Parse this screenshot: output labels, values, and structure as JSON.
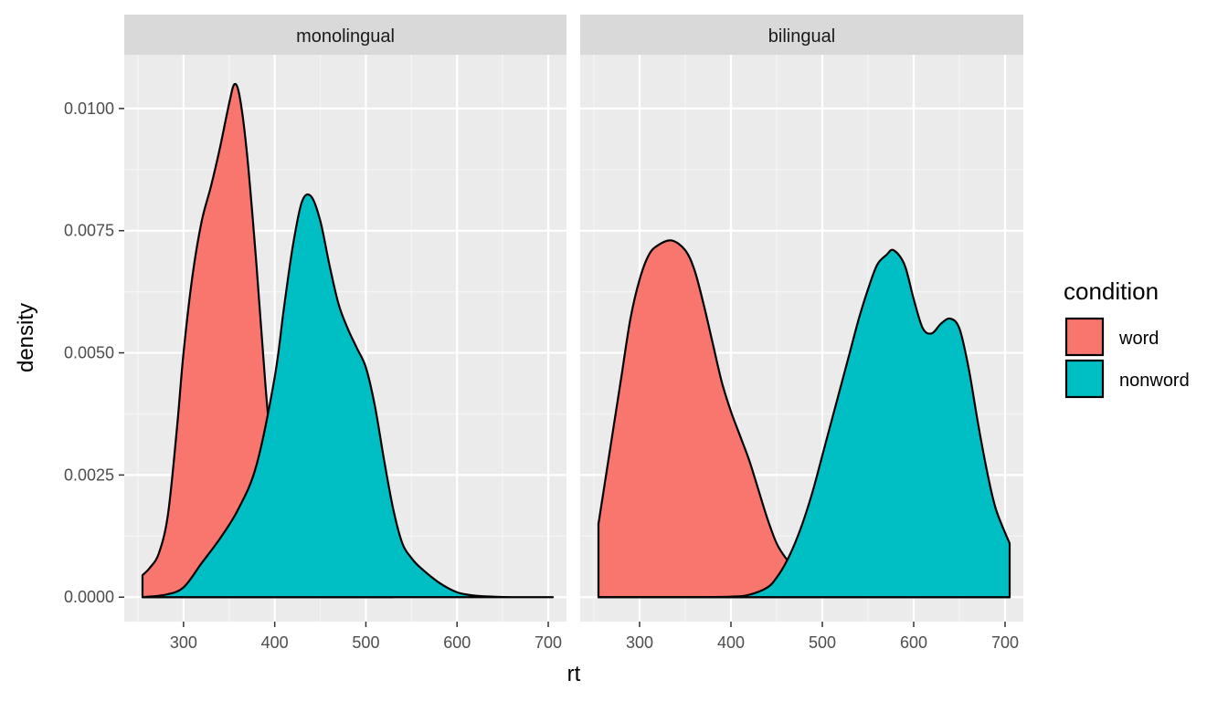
{
  "chart_data": {
    "type": "area",
    "xlabel": "rt",
    "ylabel": "density",
    "xlim": [
      235,
      720
    ],
    "ylim": [
      -0.0005,
      0.0111
    ],
    "x_ticks": [
      300,
      400,
      500,
      600,
      700
    ],
    "x_tick_labels": [
      "300",
      "400",
      "500",
      "600",
      "700"
    ],
    "y_ticks": [
      0,
      0.0025,
      0.005,
      0.0075,
      0.01
    ],
    "y_tick_labels": [
      "0.0000",
      "0.0025",
      "0.0050",
      "0.0075",
      "0.0100"
    ],
    "grid": true,
    "legend": {
      "title": "condition",
      "placement": "right",
      "entries": [
        {
          "label": "word",
          "color": "#F8766D"
        },
        {
          "label": "nonword",
          "color": "#00BFC4"
        }
      ]
    },
    "panels": [
      {
        "strip_label": "monolingual",
        "series": [
          {
            "name": "word",
            "color": "#F8766D",
            "x": [
              255,
              263,
              273,
              283,
              293,
              300,
              310,
              320,
              330,
              340,
              350,
              356,
              362,
              370,
              380,
              390,
              400,
              410,
              420,
              430,
              450,
              470,
              490,
              510,
              530
            ],
            "y": [
              0.00045,
              0.0006,
              0.0009,
              0.0017,
              0.0035,
              0.005,
              0.0066,
              0.0077,
              0.0084,
              0.0092,
              0.0101,
              0.0105,
              0.0102,
              0.009,
              0.0068,
              0.0043,
              0.0023,
              0.0011,
              0.0005,
              0.0002,
              5e-05,
              2e-05,
              1e-05,
              0.0,
              0.0
            ]
          },
          {
            "name": "nonword",
            "color": "#00BFC4",
            "x": [
              255,
              280,
              300,
              320,
              340,
              360,
              380,
              400,
              410,
              420,
              430,
              440,
              450,
              460,
              470,
              480,
              490,
              500,
              510,
              520,
              530,
              540,
              550,
              560,
              580,
              600,
              620,
              640,
              660,
              680,
              705
            ],
            "y": [
              0.0,
              5e-05,
              0.0002,
              0.0007,
              0.0012,
              0.0018,
              0.0027,
              0.0045,
              0.0059,
              0.0072,
              0.0081,
              0.0082,
              0.0077,
              0.0068,
              0.006,
              0.0055,
              0.0051,
              0.0047,
              0.0039,
              0.0028,
              0.0018,
              0.0011,
              0.0008,
              0.0006,
              0.0003,
              0.0001,
              3e-05,
              1e-05,
              0.0,
              0.0,
              0.0
            ]
          }
        ]
      },
      {
        "strip_label": "bilingual",
        "series": [
          {
            "name": "word",
            "color": "#F8766D",
            "x": [
              255,
              270,
              280,
              290,
              300,
              310,
              320,
              335,
              350,
              360,
              370,
              380,
              390,
              400,
              410,
              420,
              430,
              440,
              450,
              460,
              470,
              480,
              490,
              500,
              520,
              540,
              560,
              580,
              600,
              650,
              705
            ],
            "y": [
              0.0015,
              0.0033,
              0.0045,
              0.0057,
              0.0065,
              0.007,
              0.0072,
              0.0073,
              0.0071,
              0.0067,
              0.006,
              0.0052,
              0.0044,
              0.0038,
              0.0033,
              0.0028,
              0.0022,
              0.0016,
              0.0011,
              0.0008,
              0.0006,
              0.0004,
              0.0002,
              0.0001,
              3e-05,
              1e-05,
              0.0,
              0.0,
              0.0,
              0.0,
              0.0
            ]
          },
          {
            "name": "nonword",
            "color": "#00BFC4",
            "x": [
              255,
              300,
              350,
              400,
              420,
              440,
              450,
              460,
              470,
              480,
              490,
              500,
              510,
              520,
              530,
              540,
              550,
              560,
              570,
              578,
              590,
              600,
              610,
              620,
              630,
              640,
              650,
              660,
              670,
              680,
              690,
              705
            ],
            "y": [
              0.0,
              0.0,
              0.0,
              1e-05,
              5e-05,
              0.0002,
              0.0004,
              0.0007,
              0.0011,
              0.0016,
              0.0022,
              0.0029,
              0.0036,
              0.0043,
              0.005,
              0.0057,
              0.0063,
              0.0068,
              0.007,
              0.0071,
              0.0068,
              0.0061,
              0.0055,
              0.0054,
              0.0056,
              0.0057,
              0.0055,
              0.0047,
              0.0036,
              0.0026,
              0.0018,
              0.0011
            ]
          }
        ]
      }
    ]
  }
}
